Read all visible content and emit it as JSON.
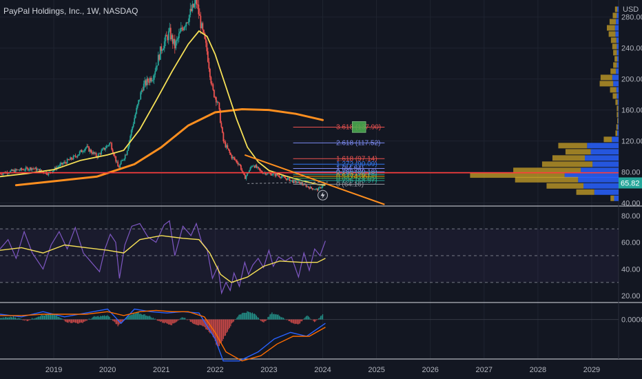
{
  "title": "PayPal Holdings, Inc., 1W, NASDAQ",
  "currency": "USD",
  "colors": {
    "background": "#131722",
    "grid": "#1f2430",
    "up": "#26a69a",
    "down": "#ef5350",
    "ma_short": "#f7e157",
    "ma_long": "#ff8f1f",
    "trendline": "#ff8f1f",
    "horizontal_line": "#ff3b3b",
    "rsi_line": "#7e57c2",
    "rsi_ma": "#f7e157",
    "macd_line": "#2962ff",
    "signal_line": "#ff6d00",
    "vp_up": "#2962ff",
    "vp_down": "#c9a227",
    "price_badge": "#26a69a",
    "target_box": "#4caf50"
  },
  "chart_data": [
    {
      "type": "candlestick",
      "name": "price",
      "x_labels": [
        "2019",
        "2020",
        "2021",
        "2022",
        "2023",
        "2024",
        "2025",
        "2026",
        "2027",
        "2028",
        "2029"
      ],
      "y_ticks": [
        40,
        80,
        120,
        160,
        200,
        240,
        280
      ],
      "y_tick_labels": [
        "40.00",
        "80.00",
        "120.00",
        "160.00",
        "200.00",
        "240.00",
        "280.00"
      ],
      "ylim": [
        36,
        302
      ],
      "xlim": [
        2018.0,
        2029.5
      ],
      "price_path": [
        [
          2018.0,
          78
        ],
        [
          2018.3,
          82
        ],
        [
          2018.6,
          85
        ],
        [
          2018.9,
          78
        ],
        [
          2019.1,
          88
        ],
        [
          2019.4,
          100
        ],
        [
          2019.6,
          112
        ],
        [
          2019.8,
          100
        ],
        [
          2020.05,
          118
        ],
        [
          2020.2,
          85
        ],
        [
          2020.35,
          105
        ],
        [
          2020.5,
          150
        ],
        [
          2020.65,
          190
        ],
        [
          2020.85,
          205
        ],
        [
          2021.0,
          240
        ],
        [
          2021.15,
          260
        ],
        [
          2021.25,
          242
        ],
        [
          2021.4,
          268
        ],
        [
          2021.5,
          280
        ],
        [
          2021.65,
          300
        ],
        [
          2021.75,
          265
        ],
        [
          2021.85,
          235
        ],
        [
          2021.95,
          185
        ],
        [
          2022.05,
          170
        ],
        [
          2022.15,
          120
        ],
        [
          2022.3,
          100
        ],
        [
          2022.45,
          90
        ],
        [
          2022.55,
          72
        ],
        [
          2022.7,
          90
        ],
        [
          2022.85,
          80
        ],
        [
          2023.0,
          78
        ],
        [
          2023.15,
          76
        ],
        [
          2023.3,
          72
        ],
        [
          2023.45,
          68
        ],
        [
          2023.6,
          65
        ],
        [
          2023.75,
          60
        ],
        [
          2023.9,
          57
        ],
        [
          2024.05,
          65
        ]
      ],
      "ma_short": [
        [
          2018.0,
          74
        ],
        [
          2018.5,
          78
        ],
        [
          2019.0,
          83
        ],
        [
          2019.5,
          95
        ],
        [
          2020.0,
          102
        ],
        [
          2020.3,
          108
        ],
        [
          2020.6,
          135
        ],
        [
          2020.9,
          172
        ],
        [
          2021.2,
          210
        ],
        [
          2021.5,
          245
        ],
        [
          2021.7,
          262
        ],
        [
          2021.85,
          255
        ],
        [
          2022.0,
          232
        ],
        [
          2022.2,
          190
        ],
        [
          2022.4,
          148
        ],
        [
          2022.6,
          112
        ],
        [
          2022.8,
          93
        ],
        [
          2023.0,
          82
        ],
        [
          2023.3,
          75
        ],
        [
          2023.6,
          69
        ],
        [
          2023.9,
          64
        ],
        [
          2024.05,
          63
        ]
      ],
      "ma_long": [
        [
          2018.3,
          63
        ],
        [
          2019.0,
          68
        ],
        [
          2019.8,
          74
        ],
        [
          2020.5,
          90
        ],
        [
          2021.0,
          112
        ],
        [
          2021.5,
          140
        ],
        [
          2022.0,
          157
        ],
        [
          2022.5,
          161
        ],
        [
          2023.0,
          160
        ],
        [
          2023.5,
          155
        ],
        [
          2024.0,
          147
        ]
      ],
      "trendline": [
        [
          2022.55,
          102
        ],
        [
          2025.15,
          38
        ]
      ],
      "horizontal_line": 79,
      "support_line": [
        [
          2022.6,
          65
        ],
        [
          2024.1,
          67
        ]
      ],
      "fib_levels": [
        {
          "ratio": "3.618",
          "price": 137.9,
          "label": "3.618 (137.90)",
          "color": "#ef5350"
        },
        {
          "ratio": "2.618",
          "price": 117.52,
          "label": "2.618 (117.52)",
          "color": "#7e8cf5"
        },
        {
          "ratio": "1.618",
          "price": 97.14,
          "label": "1.618 (97.14)",
          "color": "#ef5350"
        },
        {
          "ratio": "1.272",
          "price": 90.09,
          "label": "1.272 (90.09)",
          "color": "#3179f5"
        },
        {
          "ratio": "1",
          "price": 84.54,
          "label": "1 (84.54)",
          "color": "#7e8cf5"
        },
        {
          "ratio": "0.786",
          "price": 80.18,
          "label": "0.786 (80.18)",
          "color": "#7e8cf5"
        },
        {
          "ratio": "0.618",
          "price": 76.76,
          "label": "0.618 (76.76)",
          "color": "#26a69a"
        },
        {
          "ratio": "0.5",
          "price": 74.36,
          "label": "0.5 (74.36)",
          "color": "#ff9800"
        },
        {
          "ratio": "0.382",
          "price": 71.95,
          "label": "0.382 (71.95)",
          "color": "#4caf50"
        },
        {
          "ratio": "0.236",
          "price": 68.97,
          "label": "0.236 (68.97)",
          "color": "#26a69a"
        },
        {
          "ratio": "0",
          "price": 64.16,
          "label": "0 (64.16)",
          "color": "#9598a1"
        }
      ],
      "target_box": {
        "x_start": 2024.55,
        "x_end": 2024.8,
        "y_low": 131,
        "y_high": 145
      },
      "current_price": 65.82,
      "current_price_label": "65.82",
      "volume_profile": [
        {
          "price": 290,
          "up": 3,
          "down": 5
        },
        {
          "price": 282,
          "up": 4,
          "down": 9
        },
        {
          "price": 274,
          "up": 6,
          "down": 14
        },
        {
          "price": 266,
          "up": 8,
          "down": 18
        },
        {
          "price": 258,
          "up": 7,
          "down": 15
        },
        {
          "price": 250,
          "up": 5,
          "down": 12
        },
        {
          "price": 242,
          "up": 4,
          "down": 10
        },
        {
          "price": 234,
          "up": 4,
          "down": 8
        },
        {
          "price": 226,
          "up": 3,
          "down": 6
        },
        {
          "price": 218,
          "up": 4,
          "down": 8
        },
        {
          "price": 210,
          "up": 6,
          "down": 12
        },
        {
          "price": 202,
          "up": 14,
          "down": 26
        },
        {
          "price": 194,
          "up": 12,
          "down": 30
        },
        {
          "price": 186,
          "up": 5,
          "down": 14
        },
        {
          "price": 178,
          "up": 4,
          "down": 9
        },
        {
          "price": 170,
          "up": 2,
          "down": 5
        },
        {
          "price": 162,
          "up": 1,
          "down": 3
        },
        {
          "price": 154,
          "up": 1,
          "down": 3
        },
        {
          "price": 146,
          "up": 1,
          "down": 2
        },
        {
          "price": 138,
          "up": 2,
          "down": 3
        },
        {
          "price": 130,
          "up": 3,
          "down": 4
        },
        {
          "price": 122,
          "up": 15,
          "down": 18
        },
        {
          "price": 114,
          "up": 70,
          "down": 64
        },
        {
          "price": 106,
          "up": 62,
          "down": 56
        },
        {
          "price": 98,
          "up": 75,
          "down": 72
        },
        {
          "price": 90,
          "up": 58,
          "down": 112
        },
        {
          "price": 82,
          "up": 84,
          "down": 150
        },
        {
          "price": 76,
          "up": 120,
          "down": 210
        },
        {
          "price": 70,
          "up": 90,
          "down": 140
        },
        {
          "price": 62,
          "up": 78,
          "down": 82
        },
        {
          "price": 54,
          "up": 54,
          "down": 40
        },
        {
          "price": 46,
          "up": 10,
          "down": 8
        }
      ]
    },
    {
      "type": "line",
      "name": "RSI",
      "y_ticks": [
        20,
        40,
        60,
        80
      ],
      "y_tick_labels": [
        "20.00",
        "40.00",
        "60.00",
        "80.00"
      ],
      "ylim": [
        16,
        84
      ],
      "band": [
        30,
        70
      ],
      "midline": 50,
      "rsi": [
        [
          2018.0,
          55
        ],
        [
          2018.15,
          62
        ],
        [
          2018.3,
          48
        ],
        [
          2018.45,
          68
        ],
        [
          2018.6,
          52
        ],
        [
          2018.8,
          40
        ],
        [
          2018.95,
          58
        ],
        [
          2019.1,
          68
        ],
        [
          2019.25,
          55
        ],
        [
          2019.4,
          71
        ],
        [
          2019.55,
          52
        ],
        [
          2019.7,
          45
        ],
        [
          2019.85,
          38
        ],
        [
          2019.95,
          55
        ],
        [
          2020.05,
          66
        ],
        [
          2020.15,
          60
        ],
        [
          2020.22,
          33
        ],
        [
          2020.32,
          58
        ],
        [
          2020.45,
          72
        ],
        [
          2020.6,
          74
        ],
        [
          2020.75,
          64
        ],
        [
          2020.9,
          60
        ],
        [
          2021.05,
          73
        ],
        [
          2021.15,
          76
        ],
        [
          2021.25,
          50
        ],
        [
          2021.4,
          72
        ],
        [
          2021.55,
          65
        ],
        [
          2021.65,
          74
        ],
        [
          2021.75,
          60
        ],
        [
          2021.85,
          55
        ],
        [
          2021.95,
          33
        ],
        [
          2022.05,
          42
        ],
        [
          2022.12,
          22
        ],
        [
          2022.2,
          30
        ],
        [
          2022.28,
          24
        ],
        [
          2022.35,
          37
        ],
        [
          2022.45,
          27
        ],
        [
          2022.55,
          45
        ],
        [
          2022.62,
          36
        ],
        [
          2022.7,
          43
        ],
        [
          2022.8,
          48
        ],
        [
          2022.9,
          41
        ],
        [
          2023.0,
          54
        ],
        [
          2023.08,
          42
        ],
        [
          2023.18,
          49
        ],
        [
          2023.3,
          46
        ],
        [
          2023.42,
          49
        ],
        [
          2023.55,
          34
        ],
        [
          2023.65,
          52
        ],
        [
          2023.75,
          39
        ],
        [
          2023.85,
          55
        ],
        [
          2023.95,
          50
        ],
        [
          2024.05,
          61
        ]
      ],
      "rsi_ma": [
        [
          2018.0,
          54
        ],
        [
          2018.4,
          56
        ],
        [
          2018.8,
          52
        ],
        [
          2019.2,
          58
        ],
        [
          2019.6,
          56
        ],
        [
          2020.0,
          54
        ],
        [
          2020.3,
          52
        ],
        [
          2020.6,
          62
        ],
        [
          2021.0,
          65
        ],
        [
          2021.4,
          63
        ],
        [
          2021.7,
          62
        ],
        [
          2021.9,
          52
        ],
        [
          2022.1,
          36
        ],
        [
          2022.3,
          30
        ],
        [
          2022.6,
          34
        ],
        [
          2022.9,
          42
        ],
        [
          2023.2,
          46
        ],
        [
          2023.6,
          45
        ],
        [
          2023.9,
          45
        ],
        [
          2024.05,
          48
        ]
      ]
    },
    {
      "type": "histogram+line",
      "name": "MACD",
      "y_ticks": [
        0
      ],
      "y_tick_labels": [
        "0.0000"
      ],
      "ylim": [
        -30,
        12
      ],
      "histogram": [
        [
          2018.0,
          1
        ],
        [
          2018.25,
          2
        ],
        [
          2018.5,
          -1
        ],
        [
          2018.75,
          3
        ],
        [
          2019.0,
          4
        ],
        [
          2019.25,
          -2
        ],
        [
          2019.5,
          -3
        ],
        [
          2019.75,
          2
        ],
        [
          2020.0,
          3
        ],
        [
          2020.2,
          -5
        ],
        [
          2020.35,
          2
        ],
        [
          2020.55,
          5
        ],
        [
          2020.75,
          3
        ],
        [
          2021.0,
          -2
        ],
        [
          2021.2,
          -4
        ],
        [
          2021.4,
          2
        ],
        [
          2021.6,
          -3
        ],
        [
          2021.8,
          -6
        ],
        [
          2021.95,
          -12
        ],
        [
          2022.05,
          -22
        ],
        [
          2022.15,
          -15
        ],
        [
          2022.3,
          -4
        ],
        [
          2022.45,
          4
        ],
        [
          2022.6,
          6
        ],
        [
          2022.75,
          4
        ],
        [
          2022.9,
          -3
        ],
        [
          2023.05,
          5
        ],
        [
          2023.2,
          3
        ],
        [
          2023.4,
          -2
        ],
        [
          2023.55,
          -4
        ],
        [
          2023.7,
          3
        ],
        [
          2023.85,
          -2
        ],
        [
          2024.0,
          4
        ]
      ],
      "macd": [
        [
          2018.0,
          4
        ],
        [
          2018.4,
          2
        ],
        [
          2018.8,
          6
        ],
        [
          2019.2,
          2
        ],
        [
          2019.6,
          5
        ],
        [
          2020.0,
          8
        ],
        [
          2020.25,
          -3
        ],
        [
          2020.5,
          8
        ],
        [
          2020.8,
          6
        ],
        [
          2021.1,
          5
        ],
        [
          2021.4,
          6
        ],
        [
          2021.7,
          5
        ],
        [
          2022.0,
          -15
        ],
        [
          2022.15,
          -32
        ],
        [
          2022.45,
          -32
        ],
        [
          2022.8,
          -25
        ],
        [
          2023.1,
          -15
        ],
        [
          2023.4,
          -10
        ],
        [
          2023.7,
          -13
        ],
        [
          2024.05,
          -3
        ]
      ],
      "signal": [
        [
          2018.0,
          3
        ],
        [
          2018.4,
          3
        ],
        [
          2018.8,
          4
        ],
        [
          2019.2,
          4
        ],
        [
          2019.6,
          4
        ],
        [
          2020.0,
          6
        ],
        [
          2020.3,
          3
        ],
        [
          2020.6,
          6
        ],
        [
          2020.9,
          7
        ],
        [
          2021.2,
          6
        ],
        [
          2021.5,
          6
        ],
        [
          2021.8,
          2
        ],
        [
          2022.0,
          -10
        ],
        [
          2022.2,
          -25
        ],
        [
          2022.5,
          -32
        ],
        [
          2022.85,
          -28
        ],
        [
          2023.15,
          -19
        ],
        [
          2023.45,
          -13
        ],
        [
          2023.75,
          -13
        ],
        [
          2024.05,
          -6
        ]
      ]
    }
  ]
}
